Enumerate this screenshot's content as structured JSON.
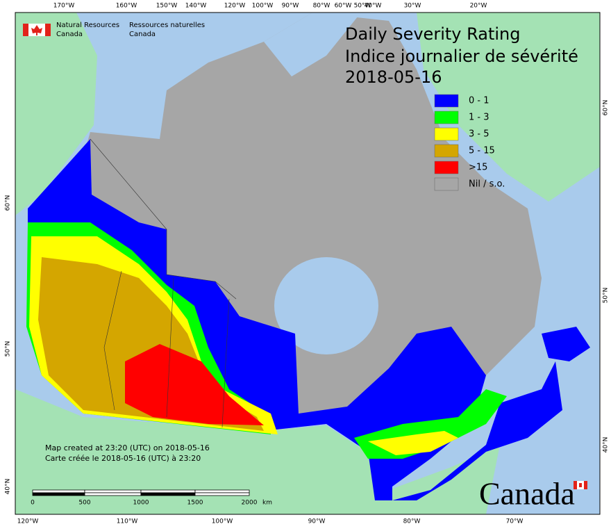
{
  "agency": {
    "en": [
      "Natural Resources",
      "Canada"
    ],
    "fr": [
      "Ressources naturelles",
      "Canada"
    ]
  },
  "title": [
    "Daily Severity Rating",
    "Indice journalier de sévérité",
    "2018-05-16"
  ],
  "legend": [
    {
      "label": "0 - 1",
      "color": "#0000ff"
    },
    {
      "label": "1 - 3",
      "color": "#00ff00"
    },
    {
      "label": "3 - 5",
      "color": "#ffff00"
    },
    {
      "label": "5 - 15",
      "color": "#d4a600"
    },
    {
      "label": ">15",
      "color": "#ff0000"
    },
    {
      "label": "Nil / s.o.",
      "color": "#a6a6a6"
    }
  ],
  "graticule": {
    "top": [
      "170°W",
      "160°W",
      "150°W",
      "140°W",
      "120°W",
      "100°W",
      "90°W",
      "80°W",
      "60°W",
      "50°W",
      "40°W",
      "30°W",
      "20°W"
    ],
    "bottom": [
      "120°W",
      "110°W",
      "100°W",
      "90°W",
      "80°W",
      "70°W"
    ],
    "left": [
      "60°N",
      "50°N",
      "40°N"
    ],
    "right": [
      "60°N",
      "50°N",
      "40°N"
    ]
  },
  "footer": [
    "Map created at 23:20 (UTC) on 2018-05-16",
    "Carte créée le 2018-05-16 (UTC) à 23:20"
  ],
  "scale_bar": {
    "labels": [
      "0",
      "500",
      "1000",
      "1500",
      "2000"
    ],
    "unit": "km"
  },
  "wordmark": "Canada"
}
